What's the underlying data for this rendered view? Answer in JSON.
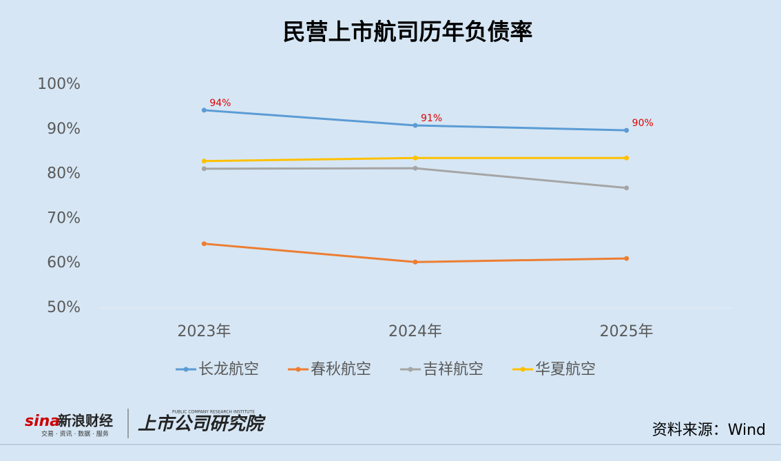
{
  "chart_data": {
    "type": "line",
    "title": "民营上市航司历年负债率",
    "categories": [
      "2023年",
      "2024年",
      "2025年"
    ],
    "series": [
      {
        "name": "长龙航空",
        "color": "#5b9bd5",
        "values": [
          94.3,
          90.9,
          89.8
        ],
        "value_labels": [
          "94%",
          "91%",
          "90%"
        ],
        "label_color": "#e00000"
      },
      {
        "name": "春秋航空",
        "color": "#ed7d31",
        "values": [
          64.4,
          60.3,
          61.1
        ]
      },
      {
        "name": "吉祥航空",
        "color": "#a5a5a5",
        "values": [
          81.2,
          81.3,
          76.9
        ]
      },
      {
        "name": "华夏航空",
        "color": "#ffc000",
        "values": [
          82.9,
          83.6,
          83.6
        ]
      }
    ],
    "ylim": [
      50,
      100
    ],
    "yticks": [
      {
        "value": 50,
        "label": "50%"
      },
      {
        "value": 60,
        "label": "60%"
      },
      {
        "value": 70,
        "label": "70%"
      },
      {
        "value": 80,
        "label": "80%"
      },
      {
        "value": 90,
        "label": "90%"
      },
      {
        "value": 100,
        "label": "100%"
      }
    ],
    "grid": false,
    "legend": "bottom",
    "source": "资料来源：Wind",
    "logo": {
      "brand": "sina",
      "name": "新浪财经",
      "tagline": "交易 · 资讯 · 数据 · 服务",
      "institute": "上市公司研究院",
      "institute_en": "PUBLIC COMPANY RESEARCH INSTITUTE"
    }
  }
}
